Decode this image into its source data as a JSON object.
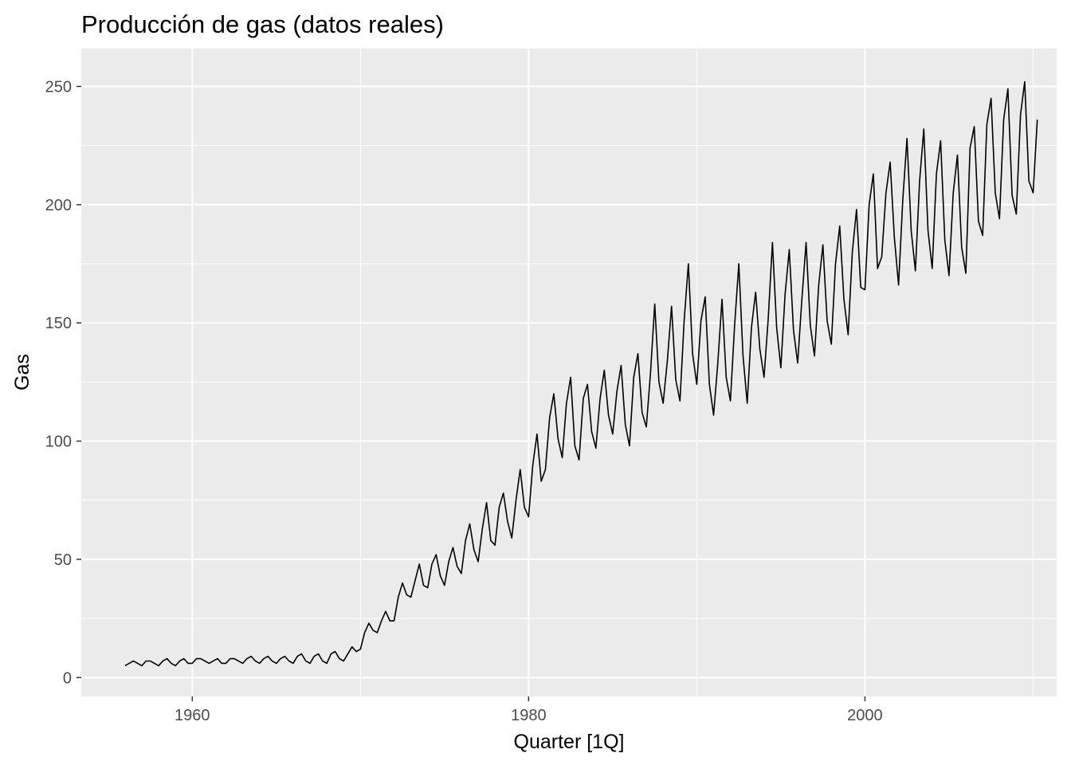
{
  "chart_data": {
    "type": "line",
    "title": "Producción de gas (datos reales)",
    "xlabel": "Quarter [1Q]",
    "ylabel": "Gas",
    "x_ticks": [
      "1960",
      "1980",
      "2000"
    ],
    "y_ticks": [
      "0",
      "50",
      "100",
      "150",
      "200",
      "250"
    ],
    "xlim": [
      1953.4,
      2011.4
    ],
    "ylim": [
      -8,
      266
    ],
    "grid": true,
    "legend": "none",
    "background": "#ebebeb",
    "line_color": "#000000",
    "series": [
      {
        "x": [
          "1956 Q1",
          "1956 Q2",
          "1956 Q3",
          "1956 Q4",
          "1957 Q1",
          "1957 Q2",
          "1957 Q3",
          "1957 Q4",
          "1958 Q1",
          "1958 Q2",
          "1958 Q3",
          "1958 Q4",
          "1959 Q1",
          "1959 Q2",
          "1959 Q3",
          "1959 Q4",
          "1960 Q1",
          "1960 Q2",
          "1960 Q3",
          "1960 Q4",
          "1961 Q1",
          "1961 Q2",
          "1961 Q3",
          "1961 Q4",
          "1962 Q1",
          "1962 Q2",
          "1962 Q3",
          "1962 Q4",
          "1963 Q1",
          "1963 Q2",
          "1963 Q3",
          "1963 Q4",
          "1964 Q1",
          "1964 Q2",
          "1964 Q3",
          "1964 Q4",
          "1965 Q1",
          "1965 Q2",
          "1965 Q3",
          "1965 Q4",
          "1966 Q1",
          "1966 Q2",
          "1966 Q3",
          "1966 Q4",
          "1967 Q1",
          "1967 Q2",
          "1967 Q3",
          "1967 Q4",
          "1968 Q1",
          "1968 Q2",
          "1968 Q3",
          "1968 Q4",
          "1969 Q1",
          "1969 Q2",
          "1969 Q3",
          "1969 Q4",
          "1970 Q1",
          "1970 Q2",
          "1970 Q3",
          "1970 Q4",
          "1971 Q1",
          "1971 Q2",
          "1971 Q3",
          "1971 Q4",
          "1972 Q1",
          "1972 Q2",
          "1972 Q3",
          "1972 Q4",
          "1973 Q1",
          "1973 Q2",
          "1973 Q3",
          "1973 Q4",
          "1974 Q1",
          "1974 Q2",
          "1974 Q3",
          "1974 Q4",
          "1975 Q1",
          "1975 Q2",
          "1975 Q3",
          "1975 Q4",
          "1976 Q1",
          "1976 Q2",
          "1976 Q3",
          "1976 Q4",
          "1977 Q1",
          "1977 Q2",
          "1977 Q3",
          "1977 Q4",
          "1978 Q1",
          "1978 Q2",
          "1978 Q3",
          "1978 Q4",
          "1979 Q1",
          "1979 Q2",
          "1979 Q3",
          "1979 Q4",
          "1980 Q1",
          "1980 Q2",
          "1980 Q3",
          "1980 Q4",
          "1981 Q1",
          "1981 Q2",
          "1981 Q3",
          "1981 Q4",
          "1982 Q1",
          "1982 Q2",
          "1982 Q3",
          "1982 Q4",
          "1983 Q1",
          "1983 Q2",
          "1983 Q3",
          "1983 Q4",
          "1984 Q1",
          "1984 Q2",
          "1984 Q3",
          "1984 Q4",
          "1985 Q1",
          "1985 Q2",
          "1985 Q3",
          "1985 Q4",
          "1986 Q1",
          "1986 Q2",
          "1986 Q3",
          "1986 Q4",
          "1987 Q1",
          "1987 Q2",
          "1987 Q3",
          "1987 Q4",
          "1988 Q1",
          "1988 Q2",
          "1988 Q3",
          "1988 Q4",
          "1989 Q1",
          "1989 Q2",
          "1989 Q3",
          "1989 Q4",
          "1990 Q1",
          "1990 Q2",
          "1990 Q3",
          "1990 Q4",
          "1991 Q1",
          "1991 Q2",
          "1991 Q3",
          "1991 Q4",
          "1992 Q1",
          "1992 Q2",
          "1992 Q3",
          "1992 Q4",
          "1993 Q1",
          "1993 Q2",
          "1993 Q3",
          "1993 Q4",
          "1994 Q1",
          "1994 Q2",
          "1994 Q3",
          "1994 Q4",
          "1995 Q1",
          "1995 Q2",
          "1995 Q3",
          "1995 Q4",
          "1996 Q1",
          "1996 Q2",
          "1996 Q3",
          "1996 Q4",
          "1997 Q1",
          "1997 Q2",
          "1997 Q3",
          "1997 Q4",
          "1998 Q1",
          "1998 Q2",
          "1998 Q3",
          "1998 Q4",
          "1999 Q1",
          "1999 Q2",
          "1999 Q3",
          "1999 Q4",
          "2000 Q1",
          "2000 Q2",
          "2000 Q3",
          "2000 Q4",
          "2001 Q1",
          "2001 Q2",
          "2001 Q3",
          "2001 Q4",
          "2002 Q1",
          "2002 Q2",
          "2002 Q3",
          "2002 Q4",
          "2003 Q1",
          "2003 Q2",
          "2003 Q3",
          "2003 Q4",
          "2004 Q1",
          "2004 Q2",
          "2004 Q3",
          "2004 Q4",
          "2005 Q1",
          "2005 Q2",
          "2005 Q3",
          "2005 Q4",
          "2006 Q1",
          "2006 Q2",
          "2006 Q3",
          "2006 Q4",
          "2007 Q1",
          "2007 Q2",
          "2007 Q3",
          "2007 Q4",
          "2008 Q1",
          "2008 Q2",
          "2008 Q3",
          "2008 Q4",
          "2009 Q1",
          "2009 Q2",
          "2009 Q3",
          "2009 Q4",
          "2010 Q1",
          "2010 Q2"
        ],
        "y": [
          5,
          6,
          7,
          6,
          5,
          7,
          7,
          6,
          5,
          7,
          8,
          6,
          5,
          7,
          8,
          6,
          6,
          8,
          8,
          7,
          6,
          7,
          8,
          6,
          6,
          8,
          8,
          7,
          6,
          8,
          9,
          7,
          6,
          8,
          9,
          7,
          6,
          8,
          9,
          7,
          6,
          9,
          10,
          7,
          6,
          9,
          10,
          7,
          6,
          10,
          11,
          8,
          7,
          10,
          13,
          11,
          12,
          19,
          23,
          20,
          19,
          24,
          28,
          24,
          24,
          34,
          40,
          35,
          34,
          41,
          48,
          39,
          38,
          48,
          52,
          43,
          39,
          49,
          55,
          47,
          44,
          58,
          65,
          54,
          49,
          63,
          74,
          58,
          56,
          72,
          78,
          66,
          59,
          75,
          88,
          72,
          68,
          90,
          103,
          83,
          88,
          110,
          120,
          101,
          93,
          116,
          127,
          98,
          92,
          118,
          124,
          104,
          97,
          118,
          130,
          111,
          103,
          121,
          132,
          107,
          98,
          127,
          137,
          112,
          106,
          129,
          158,
          125,
          116,
          134,
          157,
          126,
          117,
          151,
          175,
          137,
          124,
          151,
          161,
          124,
          111,
          133,
          160,
          127,
          117,
          149,
          175,
          136,
          116,
          148,
          163,
          139,
          127,
          152,
          184,
          148,
          131,
          162,
          181,
          147,
          133,
          160,
          184,
          149,
          136,
          166,
          183,
          151,
          141,
          175,
          191,
          160,
          145,
          180,
          198,
          165,
          164,
          200,
          213,
          173,
          178,
          205,
          218,
          186,
          166,
          202,
          228,
          189,
          172,
          210,
          232,
          189,
          173,
          213,
          227,
          185,
          170,
          205,
          221,
          182,
          171,
          224,
          233,
          193,
          187,
          234,
          245,
          205,
          194,
          236,
          249,
          204,
          196,
          238,
          252,
          210,
          205,
          236
        ]
      }
    ]
  }
}
